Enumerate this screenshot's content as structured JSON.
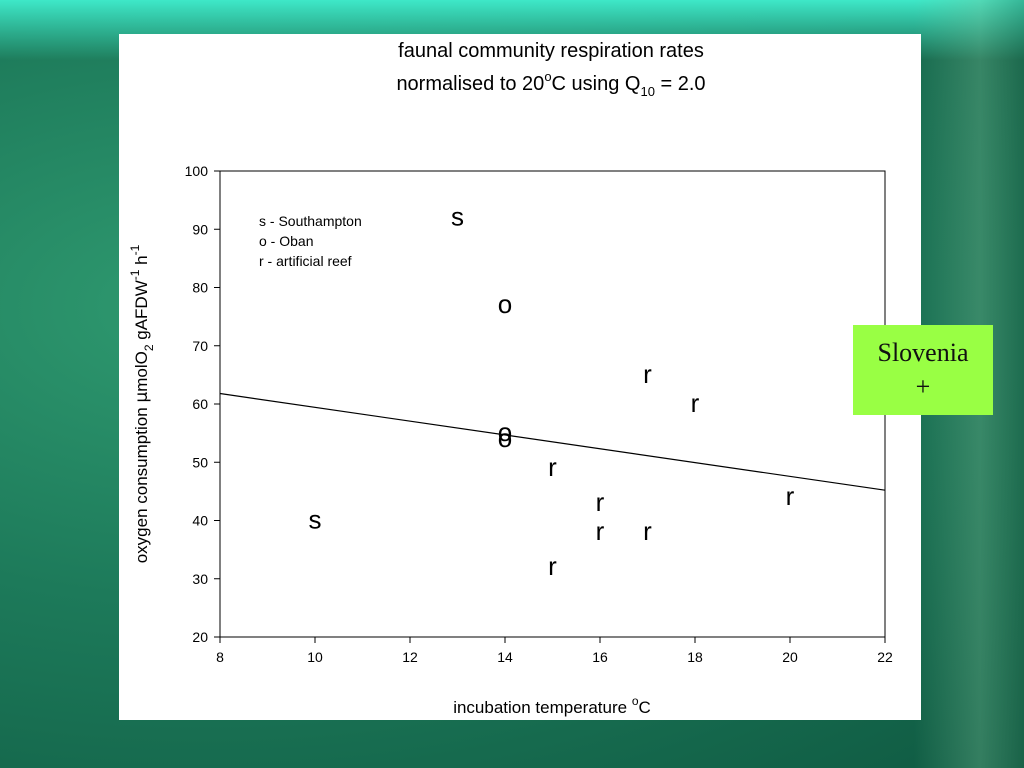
{
  "title_line1": "faunal community respiration rates",
  "title_line2_prefix": "normalised to 20",
  "title_line2_sup": "o",
  "title_line2_mid": "C using Q",
  "title_line2_sub": "10",
  "title_line2_suffix": " = 2.0",
  "xlabel_main": "incubation temperature ",
  "xlabel_sup": "o",
  "xlabel_end": "C",
  "ylabel_a": "oxygen consumption ",
  "ylabel_mu": "μ",
  "ylabel_b": "molO",
  "ylabel_sub2": "2",
  "ylabel_c": " gAFDW",
  "ylabel_sup1": "-1",
  "ylabel_d": " h",
  "ylabel_sup2": "-1",
  "legend": [
    "s - Southampton",
    "o - Oban",
    "r - artificial reef"
  ],
  "side_box": {
    "line1": "Slovenia",
    "line2": "+",
    "color": "#99ff44"
  },
  "chart_data": {
    "type": "scatter",
    "xlim": [
      8,
      22
    ],
    "ylim": [
      20,
      100
    ],
    "xticks": [
      8,
      10,
      12,
      14,
      16,
      18,
      20,
      22
    ],
    "yticks": [
      20,
      30,
      40,
      50,
      60,
      70,
      80,
      90,
      100
    ],
    "points": [
      {
        "x": 13,
        "y": 92,
        "label": "s"
      },
      {
        "x": 10,
        "y": 40,
        "label": "s"
      },
      {
        "x": 14,
        "y": 77,
        "label": "o"
      },
      {
        "x": 14,
        "y": 55,
        "label": "o"
      },
      {
        "x": 14,
        "y": 54,
        "label": "o"
      },
      {
        "x": 17,
        "y": 65,
        "label": "r"
      },
      {
        "x": 18,
        "y": 60,
        "label": "r"
      },
      {
        "x": 15,
        "y": 49,
        "label": "r"
      },
      {
        "x": 16,
        "y": 43,
        "label": "r"
      },
      {
        "x": 16,
        "y": 38,
        "label": "r"
      },
      {
        "x": 17,
        "y": 38,
        "label": "r"
      },
      {
        "x": 15,
        "y": 32,
        "label": "r"
      },
      {
        "x": 20,
        "y": 44,
        "label": "r"
      }
    ],
    "fit_line": {
      "x": [
        8,
        22
      ],
      "y": [
        61.8,
        45.2
      ]
    }
  }
}
